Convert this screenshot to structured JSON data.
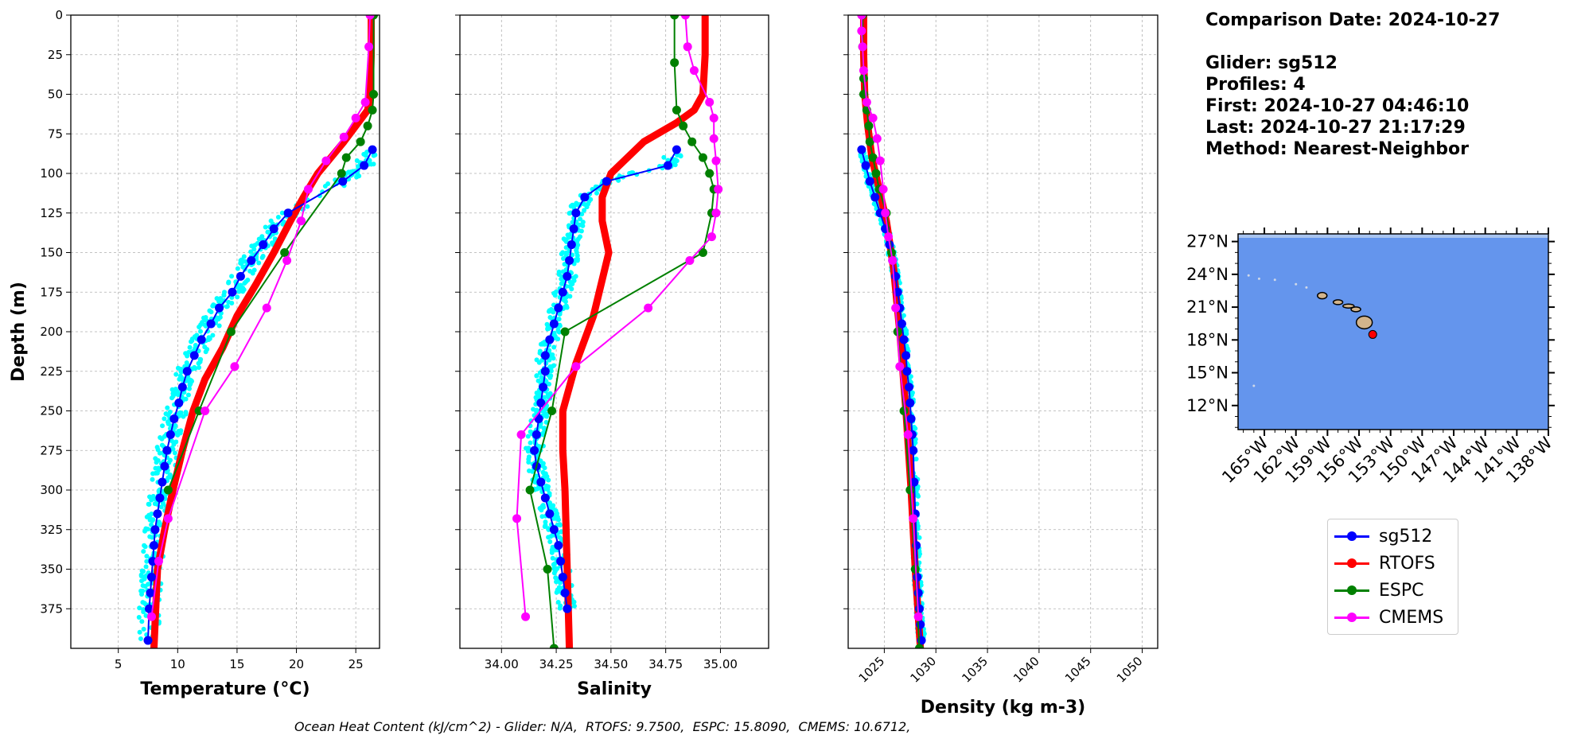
{
  "chart_data": [
    {
      "type": "line",
      "xlabel": "Temperature (°C)",
      "ylabel": "Depth (m)",
      "xlim": [
        1,
        27
      ],
      "ylim": [
        400,
        0
      ],
      "xticks": [
        5,
        10,
        15,
        20,
        25
      ],
      "yticks": [
        0,
        25,
        50,
        75,
        100,
        125,
        150,
        175,
        200,
        225,
        250,
        275,
        300,
        325,
        350,
        375
      ],
      "grid": true,
      "series": [
        {
          "name": "sg512",
          "color": "#0000ff",
          "x": [
            26.4,
            25.7,
            23.9,
            19.3,
            18.1,
            17.2,
            16.2,
            15.3,
            14.6,
            13.5,
            12.8,
            12.0,
            11.4,
            10.8,
            10.4,
            10.1,
            9.7,
            9.4,
            9.1,
            8.9,
            8.7,
            8.5,
            8.3,
            8.1,
            8.0,
            7.9,
            7.8,
            7.7,
            7.6,
            7.5
          ],
          "y": [
            85,
            95,
            105,
            125,
            135,
            145,
            155,
            165,
            175,
            185,
            195,
            205,
            215,
            225,
            235,
            245,
            255,
            265,
            275,
            285,
            295,
            305,
            315,
            325,
            335,
            345,
            355,
            365,
            375,
            395
          ]
        },
        {
          "name": "RTOFS",
          "color": "#ff0000",
          "x": [
            26.3,
            26.3,
            26.2,
            26.0,
            24.0,
            21.8,
            20.6,
            19.5,
            18.1,
            16.6,
            15.0,
            13.8,
            12.3,
            11.3,
            10.4,
            9.6,
            8.9,
            8.3,
            8.0
          ],
          "y": [
            0,
            25,
            50,
            60,
            80,
            100,
            115,
            130,
            150,
            170,
            190,
            210,
            230,
            250,
            275,
            300,
            325,
            350,
            400
          ]
        },
        {
          "name": "ESPC",
          "color": "#008000",
          "x": [
            26.5,
            26.5,
            26.4,
            26.0,
            25.4,
            24.2,
            23.8,
            19.0,
            14.5,
            11.8,
            9.2
          ],
          "y": [
            0,
            50,
            60,
            70,
            80,
            90,
            100,
            150,
            200,
            250,
            300
          ]
        },
        {
          "name": "CMEMS",
          "color": "#ff00ff",
          "x": [
            26.2,
            26.1,
            25.8,
            25.0,
            24.0,
            22.5,
            21.0,
            20.4,
            19.2,
            17.5,
            14.8,
            12.3,
            9.2,
            8.4,
            7.8
          ],
          "y": [
            0,
            20,
            55,
            65,
            77,
            92,
            110,
            130,
            155,
            185,
            222,
            250,
            318,
            345,
            380
          ]
        }
      ]
    },
    {
      "type": "line",
      "xlabel": "Salinity",
      "xlim": [
        33.81,
        35.22
      ],
      "ylim": [
        400,
        0
      ],
      "xticks": [
        34.0,
        34.25,
        34.5,
        34.75,
        35.0
      ],
      "xtick_labels": [
        "34.00",
        "34.25",
        "34.50",
        "34.75",
        "35.00"
      ],
      "grid": true,
      "series": [
        {
          "name": "sg512",
          "color": "#0000ff",
          "x": [
            34.8,
            34.76,
            34.48,
            34.38,
            34.34,
            34.33,
            34.32,
            34.31,
            34.3,
            34.28,
            34.26,
            34.24,
            34.22,
            34.2,
            34.2,
            34.19,
            34.18,
            34.17,
            34.16,
            34.15,
            34.16,
            34.18,
            34.2,
            34.22,
            34.24,
            34.26,
            34.27,
            34.28,
            34.29,
            34.3
          ],
          "y": [
            85,
            95,
            105,
            115,
            125,
            135,
            145,
            155,
            165,
            175,
            185,
            195,
            205,
            215,
            225,
            235,
            245,
            255,
            265,
            275,
            285,
            295,
            305,
            315,
            325,
            335,
            345,
            355,
            365,
            375
          ]
        },
        {
          "name": "RTOFS",
          "color": "#ff0000",
          "x": [
            34.93,
            34.93,
            34.92,
            34.88,
            34.8,
            34.65,
            34.5,
            34.46,
            34.46,
            34.49,
            34.42,
            34.34,
            34.28,
            34.28,
            34.29,
            34.3,
            34.31
          ],
          "y": [
            0,
            25,
            50,
            60,
            68,
            80,
            100,
            115,
            130,
            150,
            190,
            220,
            250,
            275,
            300,
            350,
            400
          ]
        },
        {
          "name": "ESPC",
          "color": "#008000",
          "x": [
            34.79,
            34.79,
            34.8,
            34.83,
            34.87,
            34.92,
            34.95,
            34.97,
            34.96,
            34.92,
            34.29,
            34.23,
            34.13,
            34.21,
            34.24
          ],
          "y": [
            0,
            30,
            60,
            70,
            80,
            90,
            100,
            110,
            125,
            150,
            200,
            250,
            300,
            350,
            400
          ]
        },
        {
          "name": "CMEMS",
          "color": "#ff00ff",
          "x": [
            34.84,
            34.85,
            34.88,
            34.95,
            34.97,
            34.97,
            34.98,
            34.99,
            34.98,
            34.96,
            34.86,
            34.67,
            34.34,
            34.09,
            34.07,
            34.11
          ],
          "y": [
            0,
            20,
            35,
            55,
            65,
            78,
            92,
            110,
            125,
            140,
            155,
            185,
            222,
            265,
            318,
            380
          ]
        }
      ]
    },
    {
      "type": "line",
      "xlabel": "Density (kg m-3)",
      "xlim": [
        1021.5,
        1051.5
      ],
      "ylim": [
        400,
        0
      ],
      "xticks": [
        1025,
        1030,
        1035,
        1040,
        1045,
        1050
      ],
      "grid": true,
      "series": [
        {
          "name": "sg512",
          "color": "#0000ff",
          "x": [
            1022.8,
            1023.2,
            1023.6,
            1024.1,
            1024.6,
            1025.1,
            1025.5,
            1025.8,
            1026.1,
            1026.3,
            1026.5,
            1026.7,
            1026.9,
            1027.1,
            1027.2,
            1027.4,
            1027.5,
            1027.6,
            1027.7,
            1027.8,
            1027.9,
            1028.0,
            1028.1,
            1028.2,
            1028.3,
            1028.4,
            1028.5,
            1028.6
          ],
          "y": [
            85,
            95,
            105,
            115,
            125,
            135,
            145,
            155,
            165,
            175,
            185,
            195,
            205,
            215,
            225,
            235,
            245,
            255,
            265,
            275,
            295,
            315,
            335,
            355,
            365,
            375,
            385,
            395
          ]
        },
        {
          "name": "RTOFS",
          "color": "#ff0000",
          "x": [
            1023.0,
            1023.0,
            1023.1,
            1023.4,
            1023.8,
            1024.5,
            1025.2,
            1025.9,
            1026.5,
            1027.1,
            1027.6,
            1028.0,
            1028.5
          ],
          "y": [
            0,
            25,
            50,
            70,
            90,
            110,
            130,
            160,
            200,
            250,
            300,
            350,
            400
          ]
        },
        {
          "name": "ESPC",
          "color": "#008000",
          "x": [
            1022.9,
            1022.9,
            1023.0,
            1023.0,
            1023.3,
            1023.5,
            1023.6,
            1023.9,
            1024.2,
            1024.5,
            1025.2,
            1025.7,
            1026.3,
            1026.9,
            1027.5,
            1028.0,
            1028.4
          ],
          "y": [
            0,
            20,
            40,
            50,
            60,
            70,
            80,
            90,
            100,
            110,
            125,
            150,
            200,
            250,
            300,
            350,
            400
          ]
        },
        {
          "name": "CMEMS",
          "color": "#ff00ff",
          "x": [
            1022.8,
            1022.8,
            1022.9,
            1023.0,
            1023.3,
            1023.9,
            1024.3,
            1024.6,
            1024.9,
            1025.1,
            1025.4,
            1025.8,
            1026.1,
            1026.5,
            1027.3,
            1027.8,
            1028.3
          ],
          "y": [
            0,
            10,
            20,
            35,
            55,
            65,
            78,
            92,
            110,
            125,
            140,
            155,
            185,
            222,
            265,
            318,
            380
          ]
        }
      ]
    }
  ],
  "info": {
    "comparison_date": "Comparison Date: 2024-10-27",
    "glider": "Glider: sg512",
    "profiles": "Profiles: 4",
    "first": "First: 2024-10-27 04:46:10",
    "last": "Last: 2024-10-27 21:17:29",
    "method": "Method: Nearest-Neighbor"
  },
  "map": {
    "lat_ticks": [
      "27°N",
      "24°N",
      "21°N",
      "18°N",
      "15°N",
      "12°N"
    ],
    "lat_values": [
      27,
      24,
      21,
      18,
      15,
      12
    ],
    "lon_ticks": [
      "165°W",
      "162°W",
      "159°W",
      "156°W",
      "153°W",
      "150°W",
      "147°W",
      "144°W",
      "141°W",
      "138°W"
    ],
    "lon_values": [
      -165,
      -162,
      -159,
      -156,
      -153,
      -150,
      -147,
      -144,
      -141,
      -138
    ],
    "lon_range": [
      -167.5,
      -138
    ],
    "lat_range": [
      9.8,
      27.7
    ],
    "ocean_color": "#6495ed",
    "land_color": "#d2b48c",
    "glider_location": {
      "lon": -154.7,
      "lat": 18.5
    }
  },
  "legend": {
    "items": [
      {
        "label": "sg512",
        "color": "#0000ff"
      },
      {
        "label": "RTOFS",
        "color": "#ff0000"
      },
      {
        "label": "ESPC",
        "color": "#008000"
      },
      {
        "label": "CMEMS",
        "color": "#ff00ff"
      }
    ]
  },
  "footer": "Ocean Heat Content (kJ/cm^2) - Glider: N/A,  RTOFS: 9.7500,  ESPC: 15.8090,  CMEMS: 10.6712,"
}
